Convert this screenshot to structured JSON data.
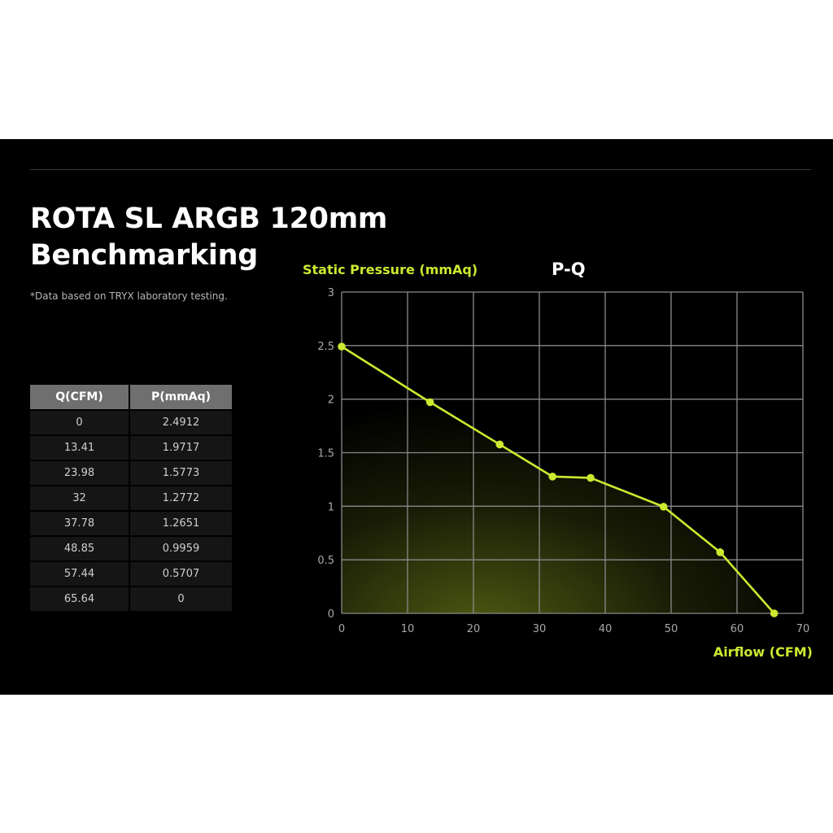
{
  "title_line1": "ROTA SL ARGB 120mm",
  "title_line2": "Benchmarking",
  "note": "*Data based on TRYX laboratory testing.",
  "table": {
    "headers": [
      "Q(CFM)",
      "P(mmAq)"
    ],
    "rows": [
      [
        "0",
        "2.4912"
      ],
      [
        "13.41",
        "1.9717"
      ],
      [
        "23.98",
        "1.5773"
      ],
      [
        "32",
        "1.2772"
      ],
      [
        "37.78",
        "1.2651"
      ],
      [
        "48.85",
        "0.9959"
      ],
      [
        "57.44",
        "0.5707"
      ],
      [
        "65.64",
        "0"
      ]
    ]
  },
  "colors": {
    "accent": "#cde830",
    "background": "#000000",
    "grid": "#8a8a8a"
  },
  "chart_data": {
    "type": "line",
    "title": "P-Q",
    "xlabel": "Airflow (CFM)",
    "ylabel": "Static Pressure (mmAq)",
    "xlim": [
      0,
      70
    ],
    "ylim": [
      0,
      3
    ],
    "x_ticks": [
      0,
      10,
      20,
      30,
      40,
      50,
      60,
      70
    ],
    "y_ticks": [
      0,
      0.5,
      1,
      1.5,
      2,
      2.5,
      3
    ],
    "grid": true,
    "series": [
      {
        "x": [
          0,
          13.41,
          23.98,
          32,
          37.78,
          48.85,
          57.44,
          65.64
        ],
        "y": [
          2.4912,
          1.9717,
          1.5773,
          1.2772,
          1.2651,
          0.9959,
          0.5707,
          0
        ]
      }
    ]
  }
}
